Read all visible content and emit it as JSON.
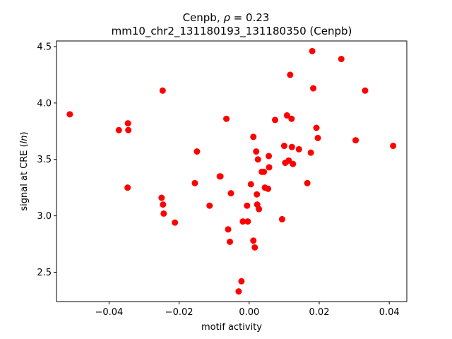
{
  "chart_data": {
    "type": "scatter",
    "title_line1_prefix": "Cenpb, ",
    "title_line1_rho": "ρ",
    "title_line1_suffix": " = 0.23",
    "title_line2": "mm10_chr2_131180193_131180350 (Cenpb)",
    "xlabel": "motif activity",
    "ylabel_prefix": "signal at CRE (",
    "ylabel_italic": "ln",
    "ylabel_suffix": ")",
    "xlim": [
      -0.055,
      0.045
    ],
    "ylim": [
      2.24,
      4.55
    ],
    "xticks": [
      -0.04,
      -0.02,
      0.0,
      0.02,
      0.04
    ],
    "xtick_labels": [
      "−0.04",
      "−0.02",
      "0.00",
      "0.02",
      "0.04"
    ],
    "yticks": [
      2.5,
      3.0,
      3.5,
      4.0,
      4.5
    ],
    "ytick_labels": [
      "2.5",
      "3.0",
      "3.5",
      "4.0",
      "4.5"
    ],
    "grid": false,
    "marker_color": "#ff0000",
    "points": [
      {
        "x": -0.0512,
        "y": 3.9
      },
      {
        "x": -0.0372,
        "y": 3.76
      },
      {
        "x": -0.0346,
        "y": 3.82
      },
      {
        "x": -0.0345,
        "y": 3.76
      },
      {
        "x": -0.0347,
        "y": 3.25
      },
      {
        "x": -0.0247,
        "y": 4.11
      },
      {
        "x": -0.025,
        "y": 3.16
      },
      {
        "x": -0.0246,
        "y": 3.1
      },
      {
        "x": -0.0244,
        "y": 3.02
      },
      {
        "x": -0.0212,
        "y": 2.94
      },
      {
        "x": -0.0149,
        "y": 3.57
      },
      {
        "x": -0.0155,
        "y": 3.29
      },
      {
        "x": -0.0113,
        "y": 3.09
      },
      {
        "x": -0.0084,
        "y": 3.35
      },
      {
        "x": -0.0082,
        "y": 3.35
      },
      {
        "x": -0.0065,
        "y": 3.86
      },
      {
        "x": -0.006,
        "y": 2.88
      },
      {
        "x": -0.0055,
        "y": 2.77
      },
      {
        "x": -0.0052,
        "y": 3.2
      },
      {
        "x": -0.003,
        "y": 2.33
      },
      {
        "x": -0.0022,
        "y": 2.42
      },
      {
        "x": -0.0018,
        "y": 2.95
      },
      {
        "x": -0.0006,
        "y": 3.09
      },
      {
        "x": -0.0004,
        "y": 2.95
      },
      {
        "x": 0.0005,
        "y": 3.28
      },
      {
        "x": 0.0012,
        "y": 3.7
      },
      {
        "x": 0.0012,
        "y": 2.78
      },
      {
        "x": 0.0016,
        "y": 2.72
      },
      {
        "x": 0.002,
        "y": 3.57
      },
      {
        "x": 0.0022,
        "y": 3.19
      },
      {
        "x": 0.0023,
        "y": 3.1
      },
      {
        "x": 0.0025,
        "y": 3.5
      },
      {
        "x": 0.0028,
        "y": 3.06
      },
      {
        "x": 0.0036,
        "y": 3.39
      },
      {
        "x": 0.0042,
        "y": 3.39
      },
      {
        "x": 0.0045,
        "y": 3.25
      },
      {
        "x": 0.0054,
        "y": 3.24
      },
      {
        "x": 0.0057,
        "y": 3.43
      },
      {
        "x": 0.0056,
        "y": 3.53
      },
      {
        "x": 0.0074,
        "y": 3.85
      },
      {
        "x": 0.0094,
        "y": 2.97
      },
      {
        "x": 0.01,
        "y": 3.62
      },
      {
        "x": 0.0103,
        "y": 3.47
      },
      {
        "x": 0.0108,
        "y": 3.89
      },
      {
        "x": 0.0113,
        "y": 3.49
      },
      {
        "x": 0.0117,
        "y": 4.25
      },
      {
        "x": 0.0121,
        "y": 3.86
      },
      {
        "x": 0.0122,
        "y": 3.61
      },
      {
        "x": 0.0125,
        "y": 3.46
      },
      {
        "x": 0.0142,
        "y": 3.59
      },
      {
        "x": 0.0166,
        "y": 3.29
      },
      {
        "x": 0.0176,
        "y": 3.56
      },
      {
        "x": 0.018,
        "y": 4.46
      },
      {
        "x": 0.0183,
        "y": 4.13
      },
      {
        "x": 0.0192,
        "y": 3.78
      },
      {
        "x": 0.0196,
        "y": 3.69
      },
      {
        "x": 0.0263,
        "y": 4.39
      },
      {
        "x": 0.0304,
        "y": 3.67
      },
      {
        "x": 0.0331,
        "y": 4.11
      },
      {
        "x": 0.0411,
        "y": 3.62
      }
    ]
  }
}
